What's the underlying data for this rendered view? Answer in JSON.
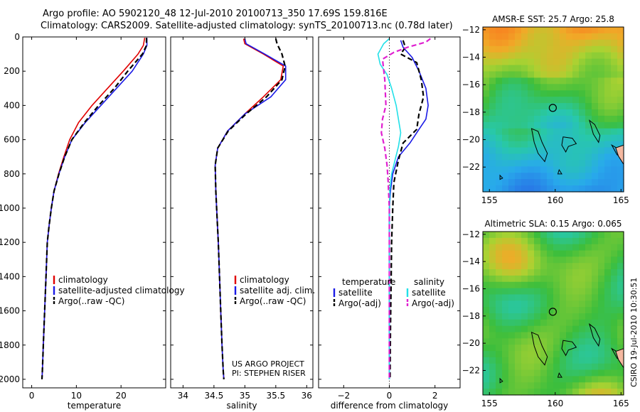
{
  "header": {
    "line1": "Argo profile: AO 5902120_48 12-Jul-2010 20100713_350 17.69S 159.816E",
    "line2": "Climatology: CARS2009. Satellite-adjusted climatology: synTS_20100713.nc (0.78d later)"
  },
  "footer": {
    "project": "US ARGO PROJECT",
    "pi": "PI: STEPHEN RISER",
    "stamp": "CSIRO 19-Jul-2010 10:30:51"
  },
  "colors": {
    "climatology": "#e00000",
    "satellite": "#1a1ae6",
    "argo": "#000000",
    "salinity_satellite": "#22e0e8",
    "salinity_argo": "#e020d0"
  },
  "chart_data": [
    {
      "type": "line",
      "xlabel": "temperature",
      "xlim": [
        -2,
        30
      ],
      "ylim": [
        0,
        2050
      ],
      "y_reversed": true,
      "xticks": [
        0,
        10,
        20
      ],
      "yticks": [
        0,
        200,
        400,
        600,
        800,
        1000,
        1200,
        1400,
        1600,
        1800,
        2000
      ],
      "legend": [
        "climatology",
        "satellite-adjusted climatology",
        "Argo(..raw -QC)"
      ],
      "series": [
        {
          "name": "climatology",
          "color": "climatology",
          "dash": "solid",
          "x": [
            25.3,
            25.0,
            23.8,
            20.5,
            17.0,
            13.5,
            10.5,
            8.5,
            7.2,
            6.0,
            5.0,
            4.4,
            3.9,
            3.5,
            3.2,
            2.9,
            2.6,
            2.4,
            2.3
          ],
          "y": [
            5,
            50,
            100,
            200,
            300,
            400,
            500,
            600,
            700,
            800,
            900,
            1000,
            1100,
            1200,
            1400,
            1600,
            1800,
            1950,
            2000
          ]
        },
        {
          "name": "satellite-adjusted climatology",
          "color": "satellite",
          "dash": "solid",
          "x": [
            25.8,
            25.8,
            25.0,
            22.5,
            19.0,
            15.5,
            12.0,
            9.0,
            7.4,
            6.1,
            5.0,
            4.4,
            3.9,
            3.5,
            3.2,
            2.9,
            2.6,
            2.4,
            2.3
          ],
          "y": [
            5,
            50,
            100,
            200,
            300,
            400,
            500,
            600,
            700,
            800,
            900,
            1000,
            1100,
            1200,
            1400,
            1600,
            1800,
            1950,
            2000
          ]
        },
        {
          "name": "Argo(..raw -QC)",
          "color": "argo",
          "dash": "dashed",
          "x": [
            25.7,
            25.7,
            24.8,
            21.5,
            18.5,
            15.0,
            11.8,
            9.0,
            7.4,
            6.1,
            5.0,
            4.4,
            3.9,
            3.5,
            3.2,
            2.9,
            2.6,
            2.4,
            2.3
          ],
          "y": [
            5,
            50,
            100,
            200,
            300,
            400,
            500,
            600,
            700,
            800,
            900,
            1000,
            1100,
            1200,
            1400,
            1600,
            1800,
            1950,
            2000
          ]
        }
      ]
    },
    {
      "type": "line",
      "xlabel": "salinity",
      "xlim": [
        33.8,
        36.1
      ],
      "ylim": [
        0,
        2050
      ],
      "y_reversed": true,
      "xticks": [
        34,
        34.5,
        35,
        35.5,
        36
      ],
      "legend": [
        "climatology",
        "satellite adj. clim.",
        "Argo(..raw -QC)"
      ],
      "series": [
        {
          "name": "climatology",
          "color": "climatology",
          "dash": "solid",
          "x": [
            34.98,
            35.0,
            35.3,
            35.62,
            35.58,
            35.3,
            35.0,
            34.72,
            34.56,
            34.52,
            34.53,
            34.55,
            34.57,
            34.59,
            34.61,
            34.63,
            34.65,
            34.66
          ],
          "y": [
            10,
            40,
            100,
            170,
            250,
            350,
            450,
            550,
            650,
            750,
            900,
            1050,
            1200,
            1400,
            1600,
            1800,
            1950,
            2000
          ]
        },
        {
          "name": "satellite adj. clim.",
          "color": "satellite",
          "dash": "solid",
          "x": [
            35.0,
            35.02,
            35.32,
            35.66,
            35.66,
            35.42,
            35.0,
            34.72,
            34.56,
            34.52,
            34.53,
            34.55,
            34.57,
            34.59,
            34.61,
            34.63,
            34.65,
            34.66
          ],
          "y": [
            10,
            40,
            100,
            170,
            250,
            350,
            450,
            550,
            650,
            750,
            900,
            1050,
            1200,
            1400,
            1600,
            1800,
            1950,
            2000
          ]
        },
        {
          "name": "Argo(..raw -QC)",
          "color": "argo",
          "dash": "dashed",
          "x": [
            35.5,
            35.52,
            35.6,
            35.65,
            35.6,
            35.35,
            35.02,
            34.73,
            34.56,
            34.52,
            34.53,
            34.55,
            34.57,
            34.59,
            34.61,
            34.63,
            34.65,
            34.66
          ],
          "y": [
            10,
            40,
            100,
            170,
            250,
            350,
            450,
            550,
            650,
            750,
            900,
            1050,
            1200,
            1400,
            1600,
            1800,
            1950,
            2000
          ]
        }
      ]
    },
    {
      "type": "line",
      "xlabel": "difference from climatology",
      "xlim": [
        -3.1,
        3.1
      ],
      "ylim": [
        0,
        2050
      ],
      "y_reversed": true,
      "xticks": [
        -2,
        0,
        2
      ],
      "legend": [
        "temperature",
        "satellite",
        "Argo(-adj)",
        "salinity",
        "satellite",
        "Argo(-adj)"
      ],
      "series": [
        {
          "name": "temperature satellite",
          "color": "satellite",
          "dash": "solid",
          "x": [
            0.5,
            0.6,
            1.0,
            1.3,
            1.6,
            1.7,
            1.6,
            1.3,
            0.9,
            0.4,
            0.15,
            0.05,
            0.0,
            0.0,
            0.0,
            0.0
          ],
          "y": [
            20,
            60,
            120,
            200,
            300,
            400,
            480,
            540,
            620,
            700,
            800,
            900,
            1000,
            1200,
            1600,
            2000
          ]
        },
        {
          "name": "temperature Argo(-adj)",
          "color": "argo",
          "dash": "dashed",
          "x": [
            0.6,
            0.7,
            0.5,
            1.2,
            1.4,
            1.5,
            1.3,
            1.2,
            0.6,
            0.4,
            0.2,
            0.15,
            0.1,
            0.08,
            0.05,
            0.03
          ],
          "y": [
            20,
            60,
            100,
            150,
            250,
            350,
            450,
            540,
            620,
            720,
            850,
            1000,
            1200,
            1400,
            1700,
            2000
          ]
        },
        {
          "name": "salinity satellite",
          "color": "salinity_satellite",
          "dash": "solid",
          "x": [
            0.0,
            -0.25,
            -0.5,
            -0.4,
            -0.1,
            0.1,
            0.3,
            0.4,
            0.5,
            0.4,
            0.25,
            0.1,
            0.02,
            0.0,
            0.0
          ],
          "y": [
            10,
            40,
            100,
            160,
            220,
            300,
            400,
            480,
            560,
            640,
            720,
            800,
            900,
            1200,
            2000
          ]
        },
        {
          "name": "salinity Argo(-adj)",
          "color": "salinity_argo",
          "dash": "dashed",
          "x": [
            1.8,
            1.6,
            0.8,
            0.2,
            -0.3,
            -0.2,
            -0.15,
            -0.3,
            -0.35,
            -0.2,
            -0.1,
            -0.05,
            0.0,
            0.0
          ],
          "y": [
            10,
            30,
            60,
            90,
            130,
            250,
            400,
            480,
            560,
            650,
            750,
            850,
            1000,
            2000
          ]
        }
      ]
    },
    {
      "type": "heatmap",
      "title": "AMSR-E SST: 25.7 Argo: 25.8",
      "xlim": [
        154.5,
        165.2
      ],
      "ylim": [
        -23.8,
        -11.8
      ],
      "xticks": [
        155,
        160,
        165
      ],
      "yticks": [
        -12,
        -14,
        -16,
        -18,
        -20,
        -22
      ],
      "marker": {
        "lon": 159.816,
        "lat": -17.69
      }
    },
    {
      "type": "heatmap",
      "title": "Altimetric SLA: 0.15 Argo: 0.065",
      "xlim": [
        154.5,
        165.2
      ],
      "ylim": [
        -23.8,
        -11.8
      ],
      "xticks": [
        155,
        160,
        165
      ],
      "yticks": [
        -12,
        -14,
        -16,
        -18,
        -20,
        -22
      ],
      "marker": {
        "lon": 159.816,
        "lat": -17.69
      }
    }
  ]
}
